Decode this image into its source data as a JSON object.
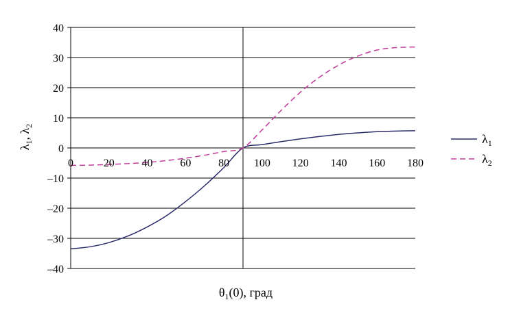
{
  "chart_data": {
    "type": "line",
    "xlabel": {
      "main": "θ",
      "sub": "1",
      "rest": "(0), град"
    },
    "ylabel": {
      "a": "λ",
      "a_sub": "1",
      "sep": ", ",
      "b": "λ",
      "b_sub": "2"
    },
    "xlim": [
      0,
      180
    ],
    "ylim": [
      -40,
      40
    ],
    "x_ticks": [
      0,
      20,
      40,
      60,
      80,
      100,
      120,
      140,
      160,
      180
    ],
    "y_ticks": [
      40,
      30,
      20,
      10,
      0,
      -10,
      -20,
      -30,
      -40
    ],
    "y_tick_labels": [
      "40",
      "30",
      "20",
      "10",
      "0",
      "–10",
      "–20",
      "–30",
      "–40"
    ],
    "grid": true,
    "legend_position": "right",
    "vertical_reference_x": 90,
    "x": [
      0,
      10,
      20,
      30,
      40,
      50,
      60,
      70,
      80,
      90,
      100,
      110,
      120,
      130,
      140,
      150,
      160,
      170,
      180
    ],
    "series": [
      {
        "name": "λ",
        "name_sub": "1",
        "color": "#2b2b6b",
        "dash": "solid",
        "values": [
          -33.5,
          -32.8,
          -31.4,
          -29.2,
          -26.2,
          -22.5,
          -17.8,
          -12.5,
          -6.5,
          0,
          1.1,
          2.1,
          3.0,
          3.8,
          4.5,
          5.0,
          5.4,
          5.6,
          5.7
        ]
      },
      {
        "name": "λ",
        "name_sub": "2",
        "color": "#c0399a",
        "dash": "dashed",
        "values": [
          -5.8,
          -5.7,
          -5.5,
          -5.2,
          -4.8,
          -4.2,
          -3.4,
          -2.4,
          -1.2,
          0,
          6.0,
          12.5,
          18.5,
          23.5,
          27.5,
          30.5,
          32.5,
          33.3,
          33.5
        ]
      }
    ]
  }
}
